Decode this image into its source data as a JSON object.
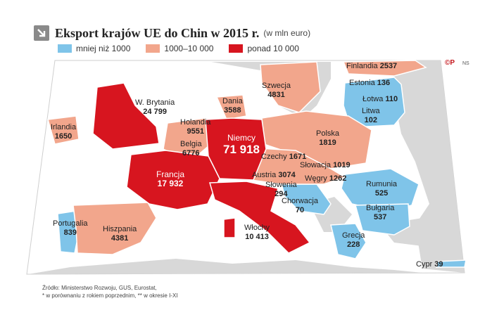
{
  "title": "Eksport krajów UE do Chin w 2015 r.",
  "unit": "(w mln euro)",
  "legend": [
    {
      "label": "mniej niż 1000",
      "color": "#7fc4e9"
    },
    {
      "label": "1000–10 000",
      "color": "#f2a68c"
    },
    {
      "label": "ponad 10 000",
      "color": "#d7151f"
    }
  ],
  "colors": {
    "sea": "#ffffff",
    "land": "#d8d8d8",
    "border": "#ffffff"
  },
  "countries": {
    "finlandia": {
      "name": "Finlandia",
      "value": "2537"
    },
    "szwecja": {
      "name": "Szwecja",
      "value": "4831"
    },
    "estonia": {
      "name": "Estonia",
      "value": "136"
    },
    "lotwa": {
      "name": "Łotwa",
      "value": "110"
    },
    "litwa": {
      "name": "Litwa",
      "value": "102"
    },
    "dania": {
      "name": "Dania",
      "value": "3588"
    },
    "wbrytania": {
      "name": "W. Brytania",
      "value": "24 799"
    },
    "irlandia": {
      "name": "Irlandia",
      "value": "1650"
    },
    "holandia": {
      "name": "Holandia",
      "value": "9551"
    },
    "belgia": {
      "name": "Belgia",
      "value": "6776"
    },
    "niemcy": {
      "name": "Niemcy",
      "value": "71 918"
    },
    "polska": {
      "name": "Polska",
      "value": "1819"
    },
    "czechy": {
      "name": "Czechy",
      "value": "1671"
    },
    "slowacja": {
      "name": "Słowacja",
      "value": "1019"
    },
    "austria": {
      "name": "Austria",
      "value": "3074"
    },
    "wegry": {
      "name": "Węgry",
      "value": "1262"
    },
    "slowenia": {
      "name": "Słowenia",
      "value": "294"
    },
    "chorwacja": {
      "name": "Chorwacja",
      "value": "70"
    },
    "francja": {
      "name": "Francja",
      "value": "17 932"
    },
    "rumunia": {
      "name": "Rumunia",
      "value": "525"
    },
    "bulgaria": {
      "name": "Bułgaria",
      "value": "537"
    },
    "wlochy": {
      "name": "Włochy",
      "value": "10 413"
    },
    "portugalia": {
      "name": "Portugalia",
      "value": "839"
    },
    "hiszpania": {
      "name": "Hiszpania",
      "value": "4381"
    },
    "grecja": {
      "name": "Grecja",
      "value": "228"
    },
    "cypr": {
      "name": "Cypr",
      "value": "39"
    }
  },
  "copyright": "©P",
  "author": "NS",
  "source": {
    "line1": "Źródło: Ministerstwo Rozwoju, GUS, Eurostat,",
    "line2": "* w porównaniu z rokiem poprzednim, ** w okresie I-XI"
  }
}
